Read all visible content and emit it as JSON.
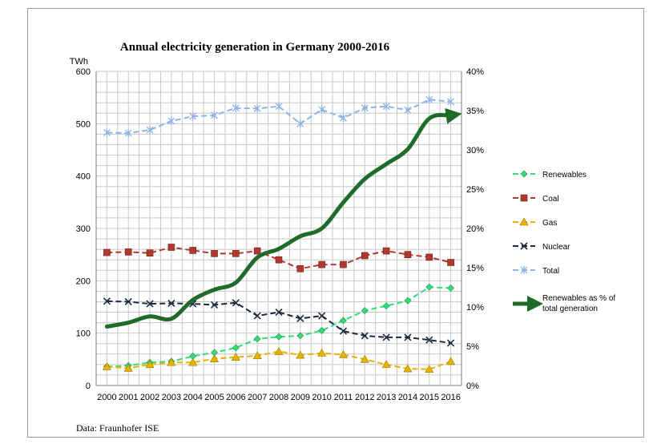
{
  "chart_data": {
    "type": "line",
    "title": "Annual electricity generation in Germany  2000-2016",
    "ylabel_left": "TWh",
    "source": "Data: Fraunhofer ISE",
    "x": [
      "2000",
      "2001",
      "2002",
      "2003",
      "2004",
      "2005",
      "2006",
      "2007",
      "2008",
      "2009",
      "2010",
      "2011",
      "2012",
      "2013",
      "2014",
      "2015",
      "2016"
    ],
    "ylim_left": [
      0,
      600
    ],
    "yticks_left": [
      "0",
      "100",
      "200",
      "300",
      "400",
      "500",
      "600"
    ],
    "ylim_right": [
      0,
      40
    ],
    "yticks_right": [
      "0%",
      "5%",
      "10%",
      "15%",
      "20%",
      "25%",
      "30%",
      "35%",
      "40%"
    ],
    "grid": true,
    "legend_position": "right",
    "series": [
      {
        "name": "Renewables",
        "axis": "left",
        "color": "#33dd77",
        "marker": "diamond",
        "values": [
          36,
          38,
          44,
          46,
          56,
          63,
          72,
          89,
          93,
          95,
          105,
          124,
          143,
          152,
          162,
          188,
          186
        ]
      },
      {
        "name": "Coal",
        "axis": "left",
        "color": "#b03a2e",
        "marker": "square",
        "values": [
          254,
          255,
          253,
          264,
          258,
          252,
          252,
          257,
          240,
          223,
          231,
          231,
          248,
          257,
          250,
          245,
          235
        ]
      },
      {
        "name": "Gas",
        "axis": "left",
        "color": "#e8b300",
        "marker": "triangle",
        "values": [
          36,
          33,
          40,
          44,
          44,
          51,
          54,
          57,
          65,
          58,
          62,
          59,
          50,
          40,
          32,
          31,
          46
        ]
      },
      {
        "name": "Nuclear",
        "axis": "left",
        "color": "#1b2a40",
        "marker": "x",
        "values": [
          161,
          160,
          156,
          157,
          156,
          154,
          158,
          133,
          140,
          128,
          133,
          104,
          95,
          92,
          92,
          87,
          81
        ]
      },
      {
        "name": "Total",
        "axis": "left",
        "color": "#8eb4e3",
        "marker": "asterisk",
        "values": [
          483,
          482,
          488,
          505,
          514,
          516,
          530,
          529,
          533,
          500,
          527,
          511,
          530,
          533,
          526,
          546,
          542
        ]
      },
      {
        "name": "Renewables as % of total generation",
        "axis": "right",
        "color": "#1e6b2a",
        "marker": "arrow",
        "values": [
          7.5,
          8.0,
          8.8,
          8.5,
          10.9,
          12.2,
          13.1,
          16.3,
          17.4,
          19.0,
          20.0,
          23.3,
          26.3,
          28.2,
          30.1,
          34.0,
          34.4
        ]
      }
    ]
  }
}
